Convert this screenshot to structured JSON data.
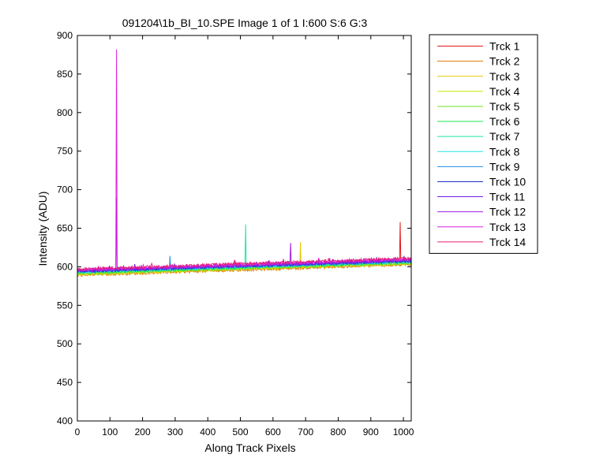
{
  "chart_data": {
    "type": "line",
    "title": "091204\\1b_BI_10.SPE  Image 1 of 1  I:600  S:6  G:3",
    "xlabel": "Along Track Pixels",
    "ylabel": "Intensity (ADU)",
    "xlim": [
      0,
      1024
    ],
    "ylim": [
      400,
      900
    ],
    "xticks": [
      0,
      100,
      200,
      300,
      400,
      500,
      600,
      700,
      800,
      900,
      1000
    ],
    "yticks": [
      400,
      450,
      500,
      550,
      600,
      650,
      700,
      750,
      800,
      850,
      900
    ],
    "grid": false,
    "legend_position": "outside-right-top",
    "series": [
      {
        "name": "Trck 1",
        "color": "#e31a1c",
        "baseline": [
          [
            0,
            592
          ],
          [
            1024,
            606
          ]
        ],
        "spikes": [
          [
            990,
            658
          ]
        ]
      },
      {
        "name": "Trck 2",
        "color": "#e07800",
        "baseline": [
          [
            0,
            589
          ],
          [
            1024,
            603
          ]
        ],
        "spikes": []
      },
      {
        "name": "Trck 3",
        "color": "#e6c800",
        "baseline": [
          [
            0,
            590
          ],
          [
            1024,
            604
          ]
        ],
        "spikes": [
          [
            685,
            632
          ]
        ]
      },
      {
        "name": "Trck 4",
        "color": "#c8e600",
        "baseline": [
          [
            0,
            591
          ],
          [
            1024,
            605
          ]
        ],
        "spikes": []
      },
      {
        "name": "Trck 5",
        "color": "#6ee61e",
        "baseline": [
          [
            0,
            591
          ],
          [
            1024,
            605
          ]
        ],
        "spikes": []
      },
      {
        "name": "Trck 6",
        "color": "#1ee650",
        "baseline": [
          [
            0,
            592
          ],
          [
            1024,
            606
          ]
        ],
        "spikes": []
      },
      {
        "name": "Trck 7",
        "color": "#1ee6a0",
        "baseline": [
          [
            0,
            593
          ],
          [
            1024,
            606
          ]
        ],
        "spikes": [
          [
            517,
            655
          ]
        ]
      },
      {
        "name": "Trck 8",
        "color": "#1ee6e6",
        "baseline": [
          [
            0,
            593
          ],
          [
            1024,
            607
          ]
        ],
        "spikes": []
      },
      {
        "name": "Trck 9",
        "color": "#1e8ce6",
        "baseline": [
          [
            0,
            594
          ],
          [
            1024,
            607
          ]
        ],
        "spikes": [
          [
            285,
            614
          ]
        ]
      },
      {
        "name": "Trck 10",
        "color": "#1e32c8",
        "baseline": [
          [
            0,
            594
          ],
          [
            1024,
            608
          ]
        ],
        "spikes": []
      },
      {
        "name": "Trck 11",
        "color": "#6e1ee6",
        "baseline": [
          [
            0,
            595
          ],
          [
            1024,
            608
          ]
        ],
        "spikes": []
      },
      {
        "name": "Trck 12",
        "color": "#a01ee6",
        "baseline": [
          [
            0,
            595
          ],
          [
            1024,
            609
          ]
        ],
        "spikes": [
          [
            121,
            690
          ],
          [
            655,
            631
          ]
        ]
      },
      {
        "name": "Trck 13",
        "color": "#dc1edc",
        "baseline": [
          [
            0,
            596
          ],
          [
            1024,
            610
          ]
        ],
        "spikes": [
          [
            121,
            882
          ]
        ]
      },
      {
        "name": "Trck 14",
        "color": "#e61e78",
        "baseline": [
          [
            0,
            597
          ],
          [
            1024,
            611
          ]
        ],
        "spikes": []
      }
    ]
  }
}
